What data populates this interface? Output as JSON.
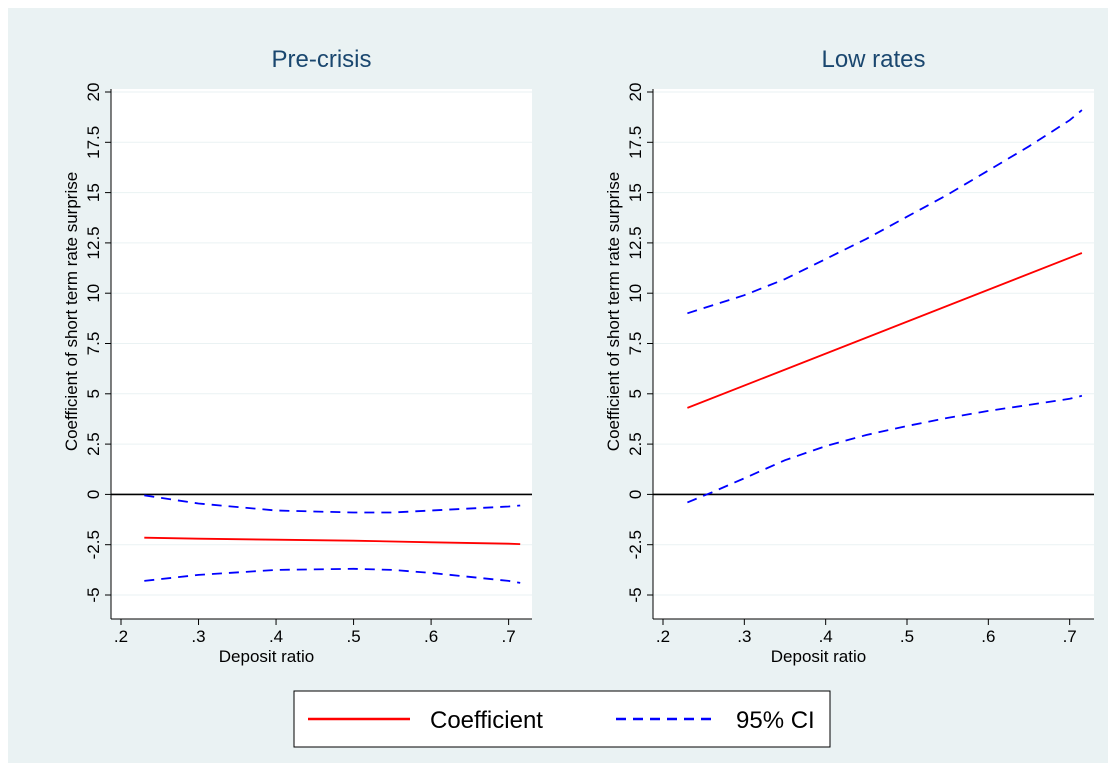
{
  "chart_data": [
    {
      "type": "line",
      "title": "Pre-crisis",
      "xlabel": "Deposit ratio",
      "ylabel": "Coefficient of short term rate surprise",
      "xlim": [
        0.2,
        0.725
      ],
      "ylim": [
        -5,
        20
      ],
      "xticks": [
        ".2",
        ".3",
        ".4",
        ".5",
        ".6",
        ".7"
      ],
      "yticks": [
        "-5",
        "-2.5",
        "0",
        "2.5",
        "5",
        "7.5",
        "10",
        "12.5",
        "15",
        "17.5",
        "20"
      ],
      "grid": true,
      "reference_line_y": 0,
      "series": [
        {
          "name": "Coefficient",
          "color": "#ff0000",
          "dash": "solid",
          "x": [
            0.23,
            0.3,
            0.4,
            0.5,
            0.6,
            0.7,
            0.715
          ],
          "y": [
            -2.15,
            -2.2,
            -2.25,
            -2.3,
            -2.38,
            -2.45,
            -2.47
          ]
        },
        {
          "name": "95% CI",
          "color": "#0000ff",
          "dash": "dashed",
          "x": [
            0.23,
            0.3,
            0.4,
            0.5,
            0.55,
            0.6,
            0.7,
            0.715
          ],
          "y": [
            -0.05,
            -0.45,
            -0.8,
            -0.9,
            -0.9,
            -0.8,
            -0.6,
            -0.55
          ]
        },
        {
          "name": "95% CI",
          "color": "#0000ff",
          "dash": "dashed",
          "x": [
            0.23,
            0.3,
            0.4,
            0.5,
            0.55,
            0.6,
            0.7,
            0.715
          ],
          "y": [
            -4.3,
            -4.0,
            -3.75,
            -3.7,
            -3.75,
            -3.9,
            -4.3,
            -4.4
          ]
        }
      ]
    },
    {
      "type": "line",
      "title": "Low rates",
      "xlabel": "Deposit ratio",
      "ylabel": "Coefficient of short term rate surprise",
      "xlim": [
        0.2,
        0.725
      ],
      "ylim": [
        -5,
        20
      ],
      "xticks": [
        ".2",
        ".3",
        ".4",
        ".5",
        ".6",
        ".7"
      ],
      "yticks": [
        "-5",
        "-2.5",
        "0",
        "2.5",
        "5",
        "7.5",
        "10",
        "12.5",
        "15",
        "17.5",
        "20"
      ],
      "grid": true,
      "reference_line_y": 0,
      "series": [
        {
          "name": "Coefficient",
          "color": "#ff0000",
          "dash": "solid",
          "x": [
            0.23,
            0.715
          ],
          "y": [
            4.3,
            12.0
          ]
        },
        {
          "name": "95% CI",
          "color": "#0000ff",
          "dash": "dashed",
          "x": [
            0.23,
            0.3,
            0.35,
            0.4,
            0.45,
            0.5,
            0.55,
            0.6,
            0.65,
            0.7,
            0.715
          ],
          "y": [
            9.0,
            9.9,
            10.7,
            11.7,
            12.7,
            13.8,
            14.9,
            16.1,
            17.3,
            18.6,
            19.1
          ]
        },
        {
          "name": "95% CI",
          "color": "#0000ff",
          "dash": "dashed",
          "x": [
            0.23,
            0.26,
            0.3,
            0.35,
            0.4,
            0.45,
            0.5,
            0.55,
            0.6,
            0.65,
            0.7,
            0.715
          ],
          "y": [
            -0.4,
            0.1,
            0.8,
            1.7,
            2.4,
            2.95,
            3.4,
            3.8,
            4.15,
            4.45,
            4.75,
            4.9
          ]
        }
      ]
    }
  ],
  "legend": {
    "items": [
      {
        "label": "Coefficient",
        "color": "#ff0000",
        "dash": "solid"
      },
      {
        "label": "95% CI",
        "color": "#0000ff",
        "dash": "dashed"
      }
    ]
  }
}
